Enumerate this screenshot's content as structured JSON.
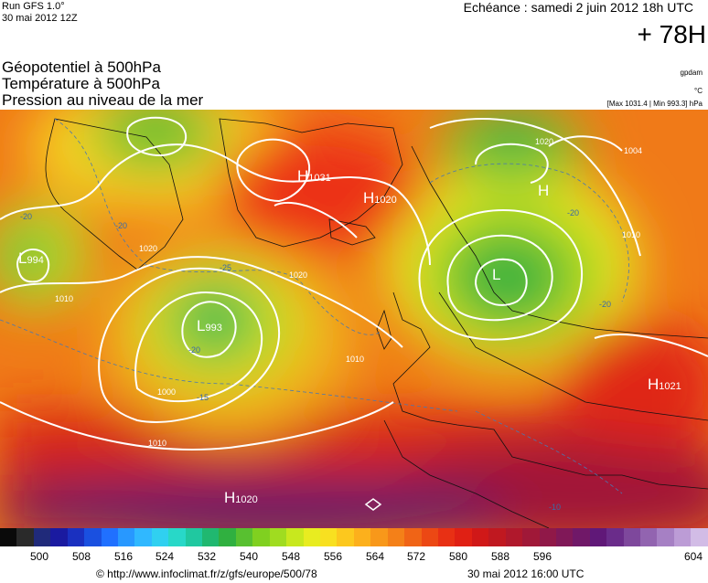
{
  "header": {
    "run": "Run GFS 1.0°",
    "init": "30 mai 2012 12Z",
    "valid": "Echéance : samedi 2 juin 2012 18h UTC",
    "lead": "+ 78H"
  },
  "legend": {
    "line1": "Géopotentiel à 500hPa",
    "line2": "Température à 500hPa",
    "line3": "Pression au niveau de la mer",
    "unit_geo": "gpdam",
    "unit_temp": "°C",
    "pressure_range": "[Max 1031.4 | Min 993.3] hPa"
  },
  "map": {
    "centers": [
      {
        "type": "H",
        "value": "1031"
      },
      {
        "type": "H",
        "value": "1020"
      },
      {
        "type": "L",
        "value": "994"
      },
      {
        "type": "L",
        "value": "993"
      },
      {
        "type": "H",
        "value": "1021"
      },
      {
        "type": "H",
        "value": "1020"
      },
      {
        "type": "L",
        "value": ""
      },
      {
        "type": "H",
        "value": ""
      }
    ],
    "isobar_labels": [
      "1020",
      "1010",
      "1000",
      "1010",
      "1020",
      "1010",
      "1004",
      "1010",
      "1020"
    ],
    "temp_labels": [
      "-20",
      "-25",
      "-20",
      "-20",
      "-20",
      "-15",
      "-10",
      "-20"
    ]
  },
  "scale": {
    "ticks": [
      "500",
      "508",
      "516",
      "524",
      "532",
      "540",
      "548",
      "556",
      "564",
      "572",
      "580",
      "588",
      "596",
      "604"
    ],
    "colors": [
      "#0a0a0a",
      "#2a2a2a",
      "#202a7a",
      "#1a1aa0",
      "#1a30c0",
      "#1a50e0",
      "#2070ff",
      "#2898ff",
      "#30b8ff",
      "#30d0f0",
      "#28d8c8",
      "#20c8a0",
      "#20b870",
      "#30b040",
      "#58c030",
      "#80d020",
      "#a0dc20",
      "#c8e81e",
      "#e8ec20",
      "#f8e020",
      "#fcc81e",
      "#fcb01c",
      "#f8981a",
      "#f48018",
      "#f06416",
      "#ec4814",
      "#e83014",
      "#e02014",
      "#d01818",
      "#c01820",
      "#b0182c",
      "#a01838",
      "#901848",
      "#801858",
      "#701868",
      "#601878",
      "#6a2c8a",
      "#7e489c",
      "#9264b0",
      "#a680c4",
      "#bc9cd6",
      "#d2bce6"
    ]
  },
  "footer": {
    "credit": "© http://www.infoclimat.fr/z/gfs/europe/500/78",
    "issued": "30 mai 2012 16:00 UTC"
  }
}
